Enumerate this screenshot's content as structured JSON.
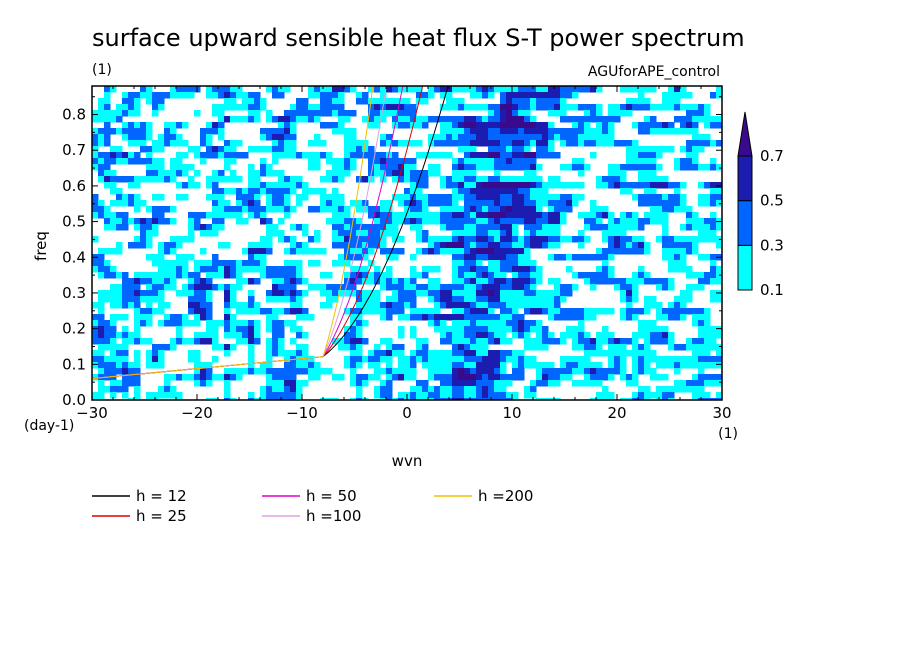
{
  "chart_data": {
    "type": "heatmap",
    "title": "surface upward sensible heat flux S-T power spectrum",
    "title_unit": "(1)",
    "subtitle": "AGUforAPE_control",
    "xlabel": "wvn",
    "xunit": "(1)",
    "ylabel": "freq",
    "yunit": "(day-1)",
    "xlim": [
      -30,
      30
    ],
    "ylim": [
      0.0,
      0.88
    ],
    "xticks": [
      -30,
      -20,
      -10,
      0,
      10,
      20,
      30
    ],
    "yticks": [
      0.0,
      0.1,
      0.2,
      0.3,
      0.4,
      0.5,
      0.6,
      0.7,
      0.8
    ],
    "colorbar": {
      "levels": [
        0.1,
        0.3,
        0.5,
        0.7
      ],
      "labels": [
        "0.1",
        "0.3",
        "0.5",
        "0.7"
      ],
      "colors": [
        "#00ffff",
        "#0066ff",
        "#1c1cb0",
        "#3a0a8c"
      ]
    },
    "background_color": "#ffffff",
    "contour_seed": 7,
    "series": [
      {
        "name": "h = 12",
        "h": 12,
        "color": "#000000"
      },
      {
        "name": "h = 25",
        "h": 25,
        "color": "#e00000"
      },
      {
        "name": "h = 50",
        "h": 50,
        "color": "#e000c8"
      },
      {
        "name": "h =100",
        "h": 100,
        "color": "#e0a0e0"
      },
      {
        "name": "h =200",
        "h": 200,
        "color": "#f0c000"
      }
    ],
    "curve_params": {
      "f0": 0.06,
      "k0": 8
    }
  }
}
